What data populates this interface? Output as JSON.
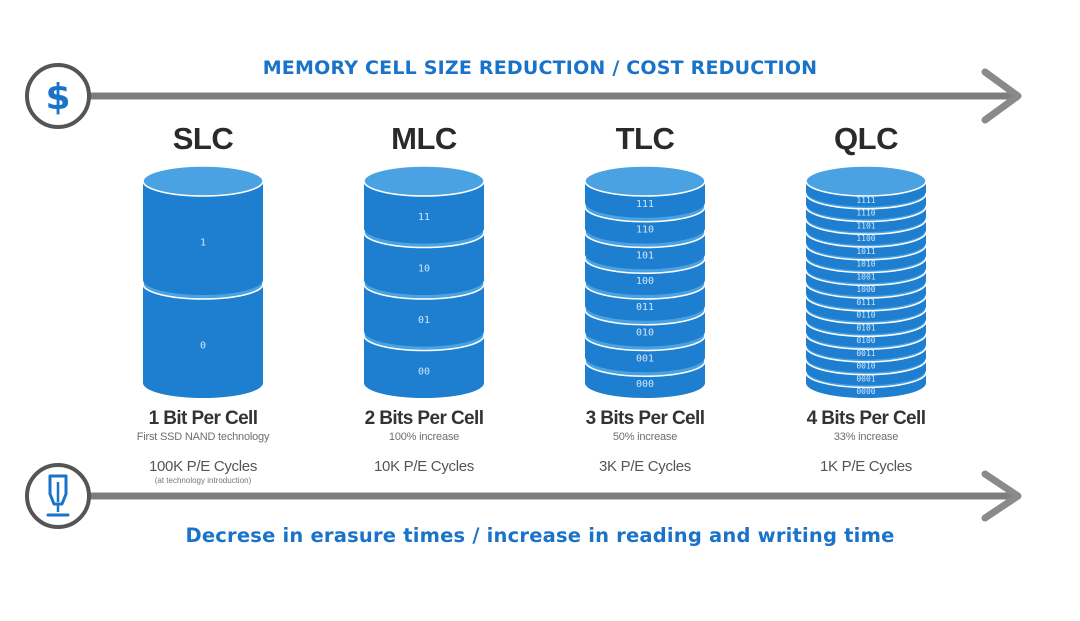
{
  "top_axis": {
    "label": "MEMORY CELL SIZE REDUCTION / COST REDUCTION",
    "icon": "dollar-icon"
  },
  "bottom_axis": {
    "label": "Decrese in erasure times / increase in reading and writing time",
    "icon": "pen-nib-icon"
  },
  "colors": {
    "accent": "#1a73c8",
    "cylinder_body": "#1e7fd0",
    "cylinder_top": "#4aa2e2",
    "arrow": "#7d7d7d"
  },
  "types": [
    {
      "name": "SLC",
      "bits_label": "1 Bit Per Cell",
      "subtitle": "First SSD NAND technology",
      "cycles": "100K P/E Cycles",
      "note": "(at technology introduction)",
      "layers": [
        "1",
        "0"
      ]
    },
    {
      "name": "MLC",
      "bits_label": "2 Bits Per Cell",
      "subtitle": "100% increase",
      "cycles": "10K P/E Cycles",
      "note": "",
      "layers": [
        "11",
        "10",
        "01",
        "00"
      ]
    },
    {
      "name": "TLC",
      "bits_label": "3 Bits Per Cell",
      "subtitle": "50% increase",
      "cycles": "3K P/E Cycles",
      "note": "",
      "layers": [
        "111",
        "110",
        "101",
        "100",
        "011",
        "010",
        "001",
        "000"
      ]
    },
    {
      "name": "QLC",
      "bits_label": "4 Bits Per Cell",
      "subtitle": "33% increase",
      "cycles": "1K P/E Cycles",
      "note": "",
      "layers": [
        "1111",
        "1110",
        "1101",
        "1100",
        "1011",
        "1010",
        "1001",
        "1000",
        "0111",
        "0110",
        "0101",
        "0100",
        "0011",
        "0010",
        "0001",
        "0000"
      ]
    }
  ]
}
